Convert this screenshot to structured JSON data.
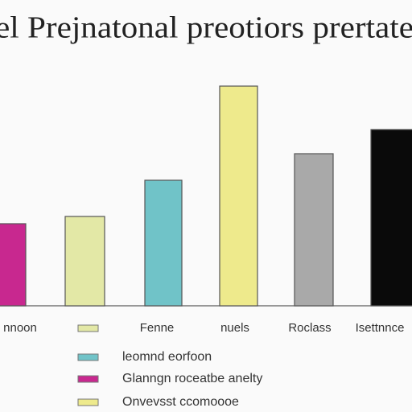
{
  "chart_data": {
    "type": "bar",
    "title": "el Prejnatonal preotiors prertate",
    "categories": [
      "nnoon",
      null,
      "Fenne",
      "nuels",
      "Roclass",
      "Isettnnce"
    ],
    "values": [
      34,
      37,
      52,
      91,
      63,
      73
    ],
    "colors": [
      "#c8288f",
      "#e3e8a6",
      "#70c3c8",
      "#eeea8c",
      "#a9a9a9",
      "#0a0a0a"
    ],
    "ylim": [
      0,
      100
    ],
    "legend": [
      {
        "label": "leomnd eorfoon",
        "color": "#70c3c8"
      },
      {
        "label": "Glanngn roceatbe anelty",
        "color": "#c8288f"
      },
      {
        "label": "Onvevsst ccomoooe",
        "color": "#eeea8c"
      }
    ]
  }
}
